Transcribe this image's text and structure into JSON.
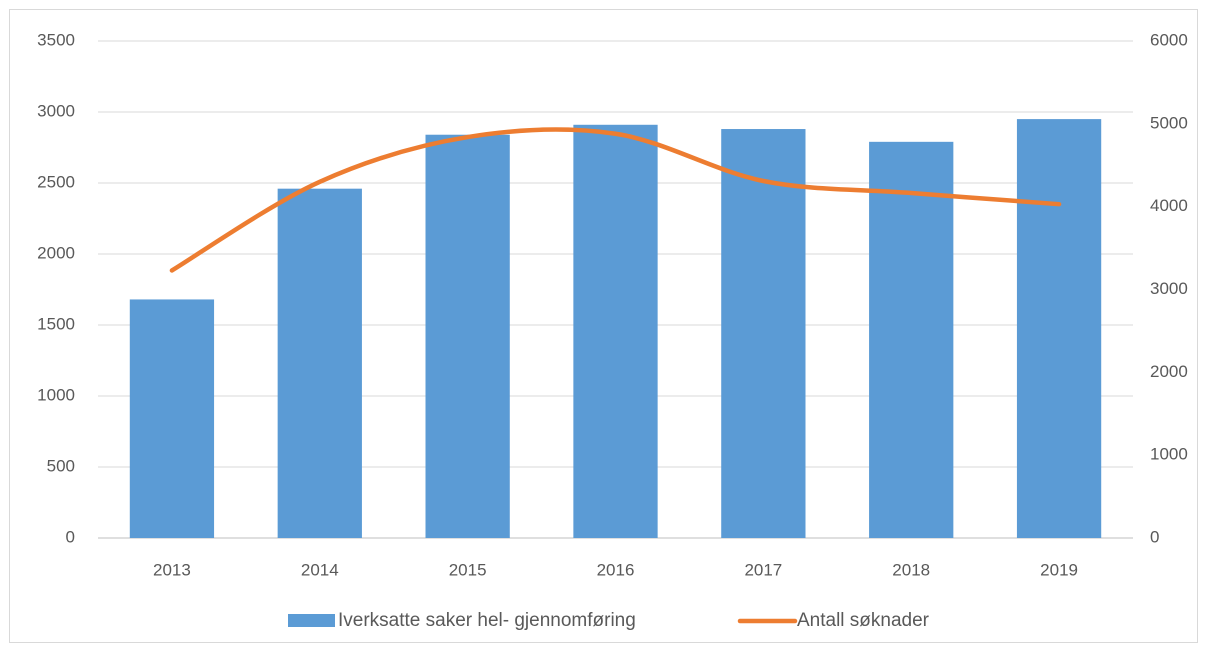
{
  "chart_data": {
    "type": "bar",
    "categories": [
      "2013",
      "2014",
      "2015",
      "2016",
      "2017",
      "2018",
      "2019"
    ],
    "series": [
      {
        "name": "Iverksatte saker hel- gjennomføring",
        "type": "bar",
        "color": "#5b9bd5",
        "values": [
          1680,
          2460,
          2840,
          2910,
          2880,
          2790,
          2950
        ]
      },
      {
        "name": "Antall søknader",
        "type": "line",
        "axis": "y2",
        "color": "#ed7d31",
        "values": [
          3230,
          4300,
          4840,
          4880,
          4310,
          4165,
          4030
        ]
      }
    ],
    "ylim": [
      0,
      3500
    ],
    "yticks": [
      0,
      500,
      1000,
      1500,
      2000,
      2500,
      3000,
      3500
    ],
    "y2lim": [
      0,
      6000
    ],
    "y2ticks": [
      0,
      1000,
      2000,
      3000,
      4000,
      5000,
      6000
    ],
    "grid": true,
    "legend": "bottom"
  }
}
